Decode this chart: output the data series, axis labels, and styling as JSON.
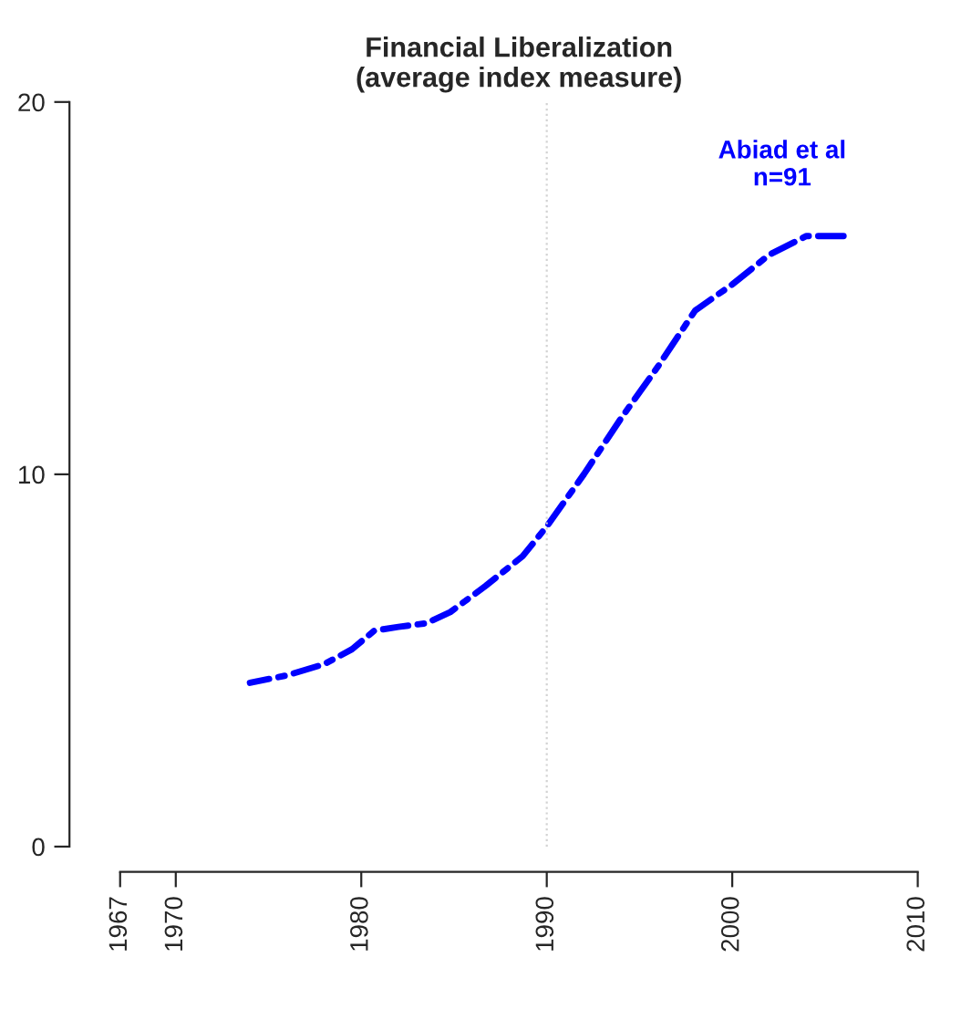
{
  "chart_data": {
    "type": "line",
    "title": "Financial Liberalization\n(average index measure)",
    "x": [
      1974,
      1976,
      1978,
      1979.5,
      1980.7,
      1982,
      1983.5,
      1984.8,
      1986.7,
      1988.7,
      1990,
      1992,
      1994,
      1996,
      1998,
      2000,
      2002,
      2004,
      2006
    ],
    "series": [
      {
        "color": "#0000ff",
        "values": [
          4.4,
          4.6,
          4.9,
          5.3,
          5.8,
          5.9,
          6.0,
          6.3,
          7.0,
          7.8,
          8.6,
          10.0,
          11.5,
          12.9,
          14.4,
          15.1,
          15.9,
          16.4,
          16.4
        ]
      }
    ],
    "xlim": [
      1967,
      2010
    ],
    "xticks": [
      1967,
      1970,
      1980,
      1990,
      2000,
      2010
    ],
    "ylim": [
      0,
      20
    ],
    "yticks": [
      0,
      10,
      20
    ],
    "ref_lines": [
      {
        "axis": "x",
        "value": 1990,
        "color": "#d3d3d3",
        "line_style": "dotted"
      }
    ],
    "annotations": [
      "Abiad et al\nn=91"
    ],
    "grid": false,
    "marker": "none",
    "line_style": "dashed"
  }
}
